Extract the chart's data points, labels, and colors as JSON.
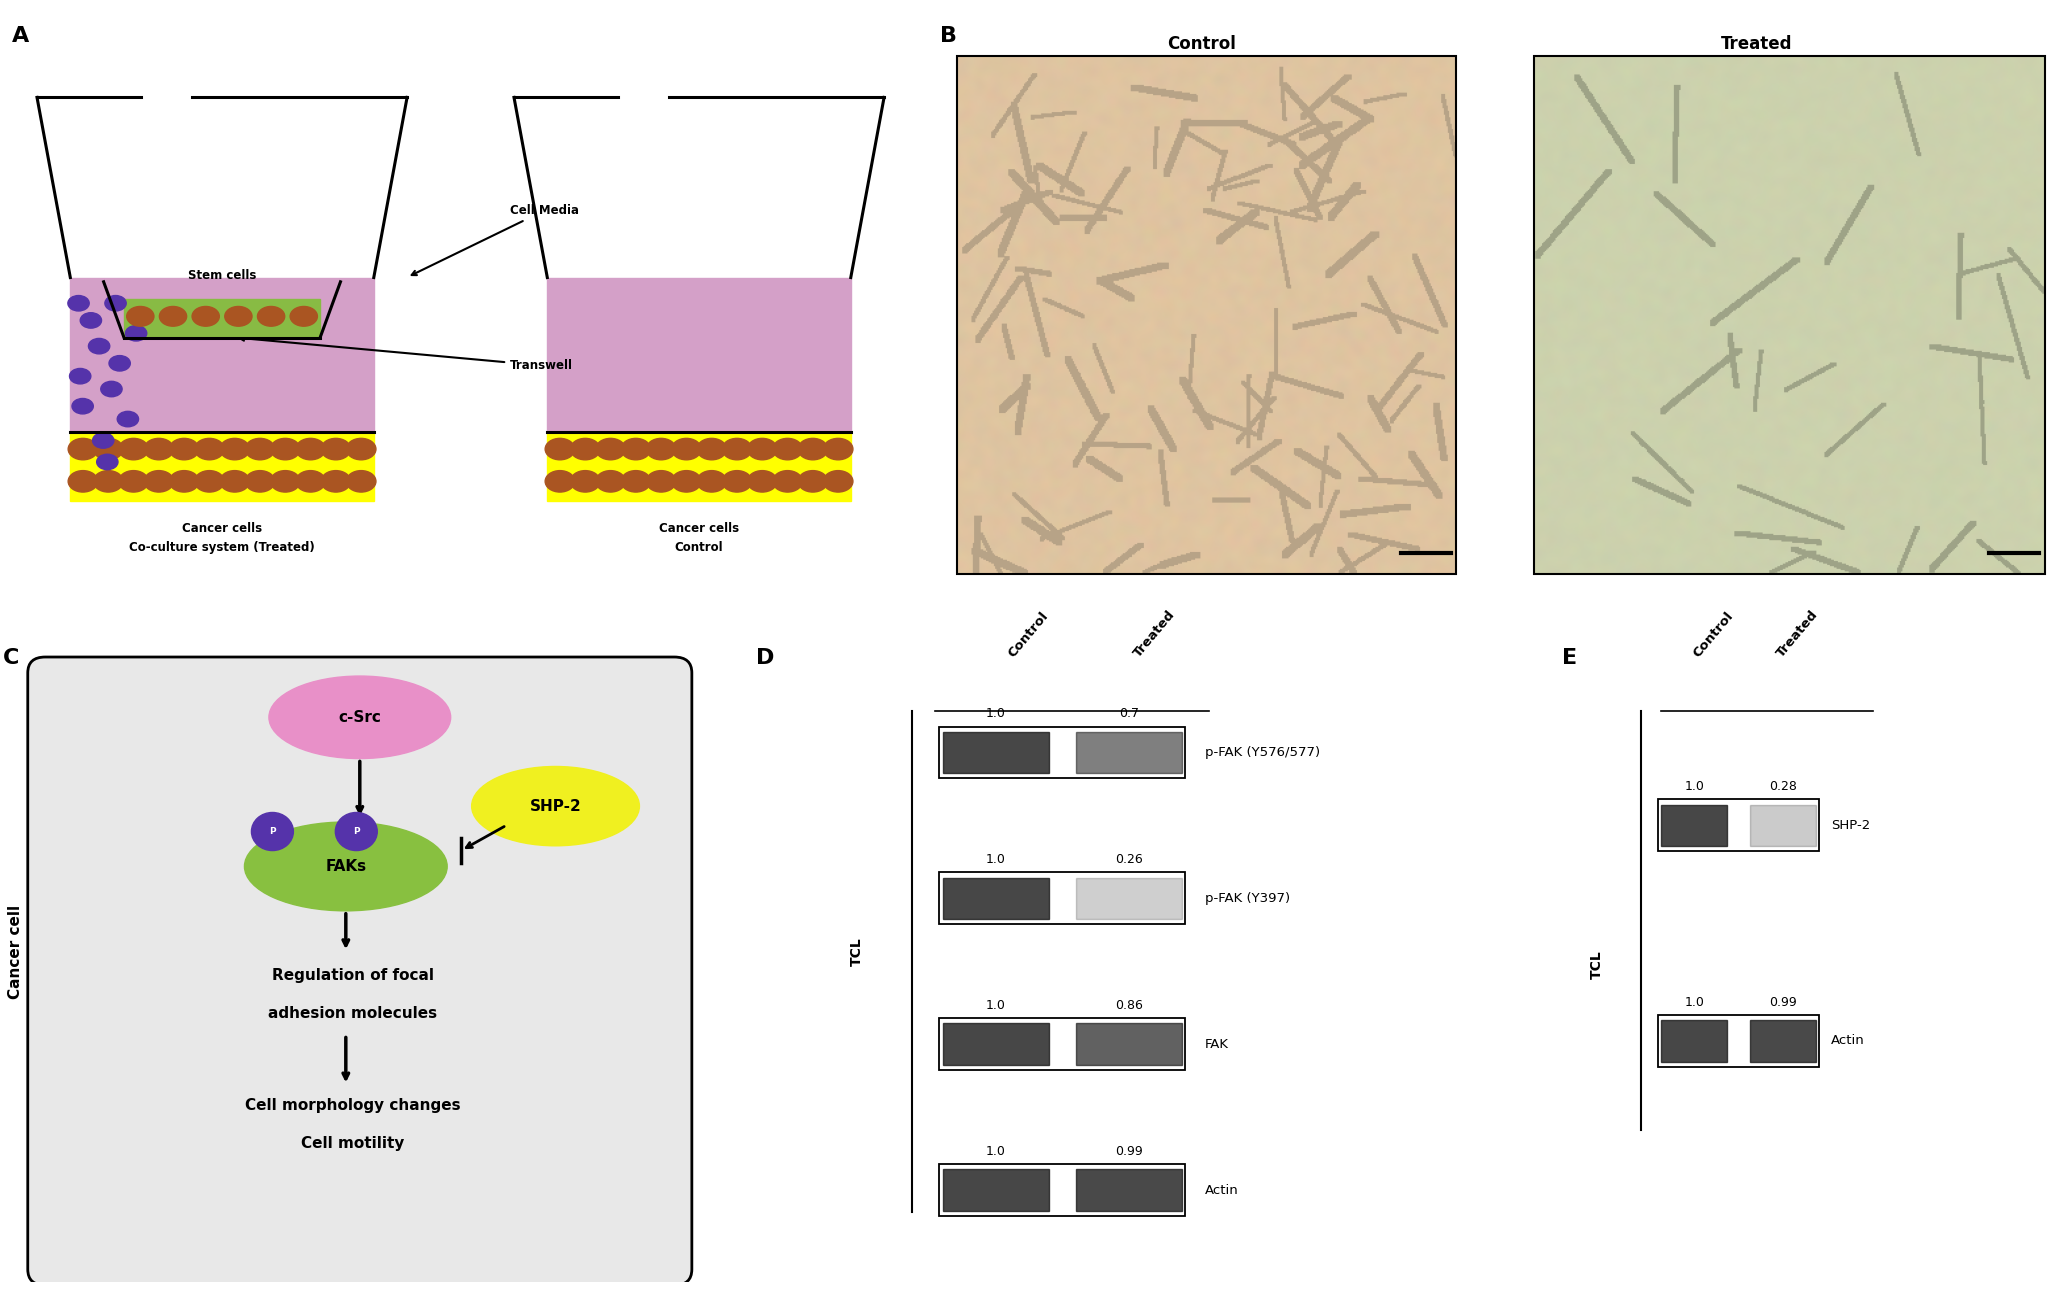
{
  "panel_A": {
    "title_left": "Co-culture system (Treated)",
    "title_right": "Control",
    "media_label": "Cell Media",
    "transwell_label": "Transwell",
    "stem_cells_label": "Stem cells",
    "cancer_cells_label": "Cancer cells",
    "bg_color": "#d4a0c8",
    "green_rect_color": "#88bb44",
    "yellow_rect_color": "#ffff00",
    "cell_color": "#aa5522",
    "purple_dot_color": "#5533aa"
  },
  "panel_B": {
    "control_title": "Control",
    "treated_title": "Treated",
    "control_bg": [
      0.88,
      0.77,
      0.64
    ],
    "treated_bg": [
      0.8,
      0.83,
      0.68
    ]
  },
  "panel_C": {
    "box_bg": "#e8e8e8",
    "csrc_color": "#e890c8",
    "faks_color": "#88c040",
    "shp2_color": "#f0f020",
    "p_color": "#5533aa",
    "cancer_cell_label": "Cancer cell"
  },
  "panel_D": {
    "bands": [
      {
        "label": "p-FAK (Y576/577)",
        "vals": [
          1.0,
          0.7
        ],
        "y": 8.4
      },
      {
        "label": "p-FAK (Y397)",
        "vals": [
          1.0,
          0.26
        ],
        "y": 6.1
      },
      {
        "label": "FAK",
        "vals": [
          1.0,
          0.86
        ],
        "y": 3.8
      },
      {
        "label": "Actin",
        "vals": [
          1.0,
          0.99
        ],
        "y": 1.5
      }
    ],
    "tcl_label": "TCL",
    "col_labels": [
      "Control",
      "Treated"
    ]
  },
  "panel_E": {
    "bands": [
      {
        "label": "SHP-2",
        "vals": [
          1.0,
          0.28
        ],
        "y": 6.5
      },
      {
        "label": "Actin",
        "vals": [
          1.0,
          0.99
        ],
        "y": 3.0
      }
    ],
    "tcl_label": "TCL",
    "col_labels": [
      "Control",
      "Treated"
    ]
  },
  "label_fontsize": 16,
  "background_color": "#ffffff"
}
